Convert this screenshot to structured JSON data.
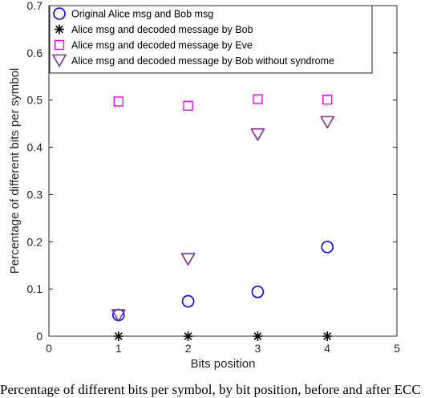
{
  "caption": "Percentage of different bits per symbol, by bit position, before and after ECC",
  "chart_data": {
    "type": "scatter",
    "title": "",
    "xlabel": "Bits position",
    "ylabel": "Percentage of different bits per symbol",
    "xlim": [
      0,
      5
    ],
    "ylim": [
      0,
      0.7
    ],
    "xticks": [
      0,
      1,
      2,
      3,
      4,
      5
    ],
    "yticks": [
      0,
      0.1,
      0.2,
      0.3,
      0.4,
      0.5,
      0.6,
      0.7
    ],
    "xtick_labels": [
      "0",
      "1",
      "2",
      "3",
      "4",
      "5"
    ],
    "ytick_labels": [
      "0",
      "0.1",
      "0.2",
      "0.3",
      "0.4",
      "0.5",
      "0.6",
      "0.7"
    ],
    "grid": false,
    "legend_position": "top-left",
    "series": [
      {
        "name": "Original Alice msg and Bob msg",
        "marker": "circle",
        "color": "#0000ff",
        "x": [
          1,
          2,
          3,
          4
        ],
        "y": [
          0.045,
          0.074,
          0.094,
          0.189
        ]
      },
      {
        "name": "Alice msg and decoded message by Bob",
        "marker": "asterisk",
        "color": "#000000",
        "x": [
          1,
          2,
          3,
          4
        ],
        "y": [
          0,
          0,
          0,
          0
        ]
      },
      {
        "name": "Alice msg and decoded message by Eve",
        "marker": "square",
        "color": "#ff00ff",
        "x": [
          1,
          2,
          3,
          4
        ],
        "y": [
          0.497,
          0.488,
          0.502,
          0.501
        ]
      },
      {
        "name": "Alice msg and decoded message by Bob without syndrome",
        "marker": "triangle-down",
        "color": "#7e2f8e",
        "x": [
          1,
          2,
          3,
          4
        ],
        "y": [
          0.044,
          0.163,
          0.427,
          0.453
        ]
      }
    ]
  }
}
